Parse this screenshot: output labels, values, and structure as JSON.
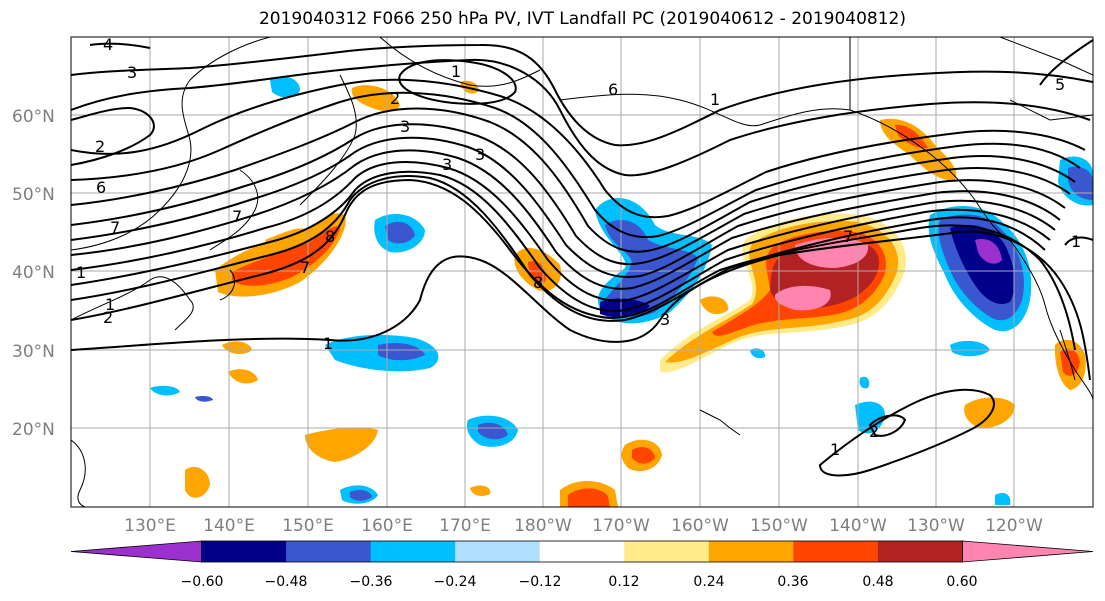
{
  "title": "2019040312 F066 250 hPa PV, IVT Landfall PC (2019040612 - 2019040812)",
  "lat_labels": [
    "20°N",
    "30°N",
    "40°N",
    "50°N",
    "60°N"
  ],
  "lon_labels": [
    "130°E",
    "140°E",
    "150°E",
    "160°E",
    "170°E",
    "180°W",
    "170°W",
    "160°W",
    "150°W",
    "140°W",
    "130°W",
    "120°W"
  ],
  "contour_labels": [
    "1",
    "1",
    "1",
    "1",
    "1",
    "2",
    "2",
    "2",
    "2",
    "3",
    "3",
    "3",
    "3",
    "3",
    "4",
    "5",
    "6",
    "6",
    "7",
    "7",
    "7",
    "7",
    "8",
    "8",
    "1",
    "1"
  ],
  "colorbar": {
    "tick_labels": [
      "−0.60",
      "−0.48",
      "−0.36",
      "−0.24",
      "−0.12",
      "0.12",
      "0.24",
      "0.36",
      "0.48",
      "0.60"
    ],
    "colors": [
      "#9b30cf",
      "#00008b",
      "#3a57d0",
      "#00bfff",
      "#b0e0ff",
      "#ffffff",
      "#ffeb8a",
      "#ffa500",
      "#ff4500",
      "#b22222",
      "#ff85b0"
    ]
  },
  "chart_data": {
    "type": "map",
    "title": "2019040312 F066 250 hPa PV, IVT Landfall PC (2019040612 - 2019040812)",
    "projection": "cylindrical",
    "lon_range": [
      120,
      250
    ],
    "lat_range": [
      10,
      70
    ],
    "fields": [
      "250 hPa PV (contours)",
      "IVT Landfall PC (filled)"
    ],
    "levels": [
      -0.6,
      -0.48,
      -0.36,
      -0.24,
      -0.12,
      0.12,
      0.24,
      0.36,
      0.48,
      0.6
    ]
  }
}
